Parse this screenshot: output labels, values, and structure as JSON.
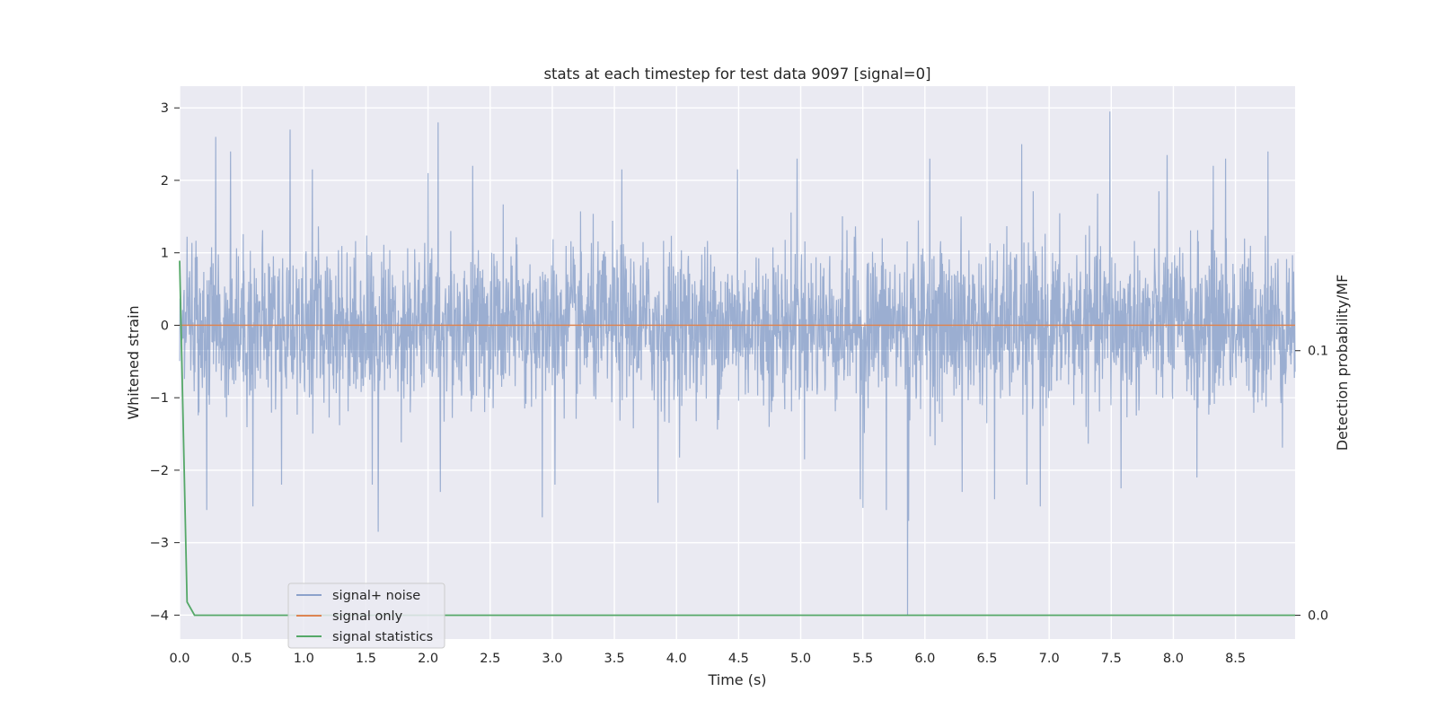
{
  "chart_data": {
    "type": "line",
    "title": "stats at each timestep for test data 9097 [signal=0]",
    "xlabel": "Time (s)",
    "ylabel": "Whitened strain",
    "y2label": "Detection probability/MF",
    "xlim": [
      0,
      8.98
    ],
    "ylim": [
      -4.33,
      3.3
    ],
    "y2lim": [
      -0.009,
      0.2
    ],
    "x_ticks": [
      0.0,
      0.5,
      1.0,
      1.5,
      2.0,
      2.5,
      3.0,
      3.5,
      4.0,
      4.5,
      5.0,
      5.5,
      6.0,
      6.5,
      7.0,
      7.5,
      8.0,
      8.5
    ],
    "x_tick_labels": [
      "0.0",
      "0.5",
      "1.0",
      "1.5",
      "2.0",
      "2.5",
      "3.0",
      "3.5",
      "4.0",
      "4.5",
      "5.0",
      "5.5",
      "6.0",
      "6.5",
      "7.0",
      "7.5",
      "8.0",
      "8.5"
    ],
    "y_ticks": [
      3,
      2,
      1,
      0,
      -1,
      -2,
      -3,
      -4
    ],
    "y_tick_labels": [
      "3",
      "2",
      "1",
      "0",
      "−1",
      "−2",
      "−3",
      "−4"
    ],
    "y2_ticks": [
      0.1,
      0.0
    ],
    "y2_tick_labels": [
      "0.1",
      "0.0"
    ],
    "grid": true,
    "legend_position": "lower-left",
    "series": [
      {
        "name": "signal+ noise",
        "color": "#4c72b0",
        "axis": "left",
        "kind": "noise",
        "x_range": [
          0,
          8.98
        ],
        "sample_count": 3000,
        "typical_amplitude": 1.0,
        "peaks": [
          {
            "x": 0.22,
            "y": -2.55
          },
          {
            "x": 0.29,
            "y": 2.6
          },
          {
            "x": 0.41,
            "y": 2.4
          },
          {
            "x": 0.59,
            "y": -2.5
          },
          {
            "x": 0.82,
            "y": -2.2
          },
          {
            "x": 0.89,
            "y": 2.7
          },
          {
            "x": 1.07,
            "y": 2.15
          },
          {
            "x": 1.6,
            "y": -2.85
          },
          {
            "x": 1.55,
            "y": -2.2
          },
          {
            "x": 2.0,
            "y": 2.1
          },
          {
            "x": 2.08,
            "y": 2.8
          },
          {
            "x": 2.1,
            "y": -2.3
          },
          {
            "x": 2.36,
            "y": 2.2
          },
          {
            "x": 2.92,
            "y": -2.65
          },
          {
            "x": 3.02,
            "y": -2.2
          },
          {
            "x": 3.56,
            "y": 2.15
          },
          {
            "x": 3.85,
            "y": -2.45
          },
          {
            "x": 4.49,
            "y": 2.15
          },
          {
            "x": 4.97,
            "y": 2.3
          },
          {
            "x": 5.48,
            "y": -2.4
          },
          {
            "x": 5.5,
            "y": -2.52
          },
          {
            "x": 5.69,
            "y": -2.55
          },
          {
            "x": 5.86,
            "y": -4.0
          },
          {
            "x": 5.87,
            "y": -2.7
          },
          {
            "x": 6.04,
            "y": 2.3
          },
          {
            "x": 6.3,
            "y": -2.3
          },
          {
            "x": 6.56,
            "y": -2.4
          },
          {
            "x": 6.78,
            "y": 2.5
          },
          {
            "x": 6.82,
            "y": -2.2
          },
          {
            "x": 6.93,
            "y": -2.5
          },
          {
            "x": 7.49,
            "y": 2.95
          },
          {
            "x": 7.58,
            "y": -2.25
          },
          {
            "x": 7.95,
            "y": 2.35
          },
          {
            "x": 8.19,
            "y": -2.1
          },
          {
            "x": 8.32,
            "y": 2.2
          },
          {
            "x": 8.42,
            "y": 2.3
          },
          {
            "x": 8.76,
            "y": 2.4
          }
        ]
      },
      {
        "name": "signal only",
        "color": "#dd8452",
        "axis": "left",
        "x": [
          0,
          8.98
        ],
        "y": [
          0,
          0
        ]
      },
      {
        "name": "signal statistics",
        "color": "#55a868",
        "axis": "right",
        "x": [
          0.0,
          0.06,
          0.12,
          0.2,
          8.98
        ],
        "y": [
          0.134,
          0.005,
          0.0,
          0.0,
          0.0
        ]
      }
    ]
  }
}
